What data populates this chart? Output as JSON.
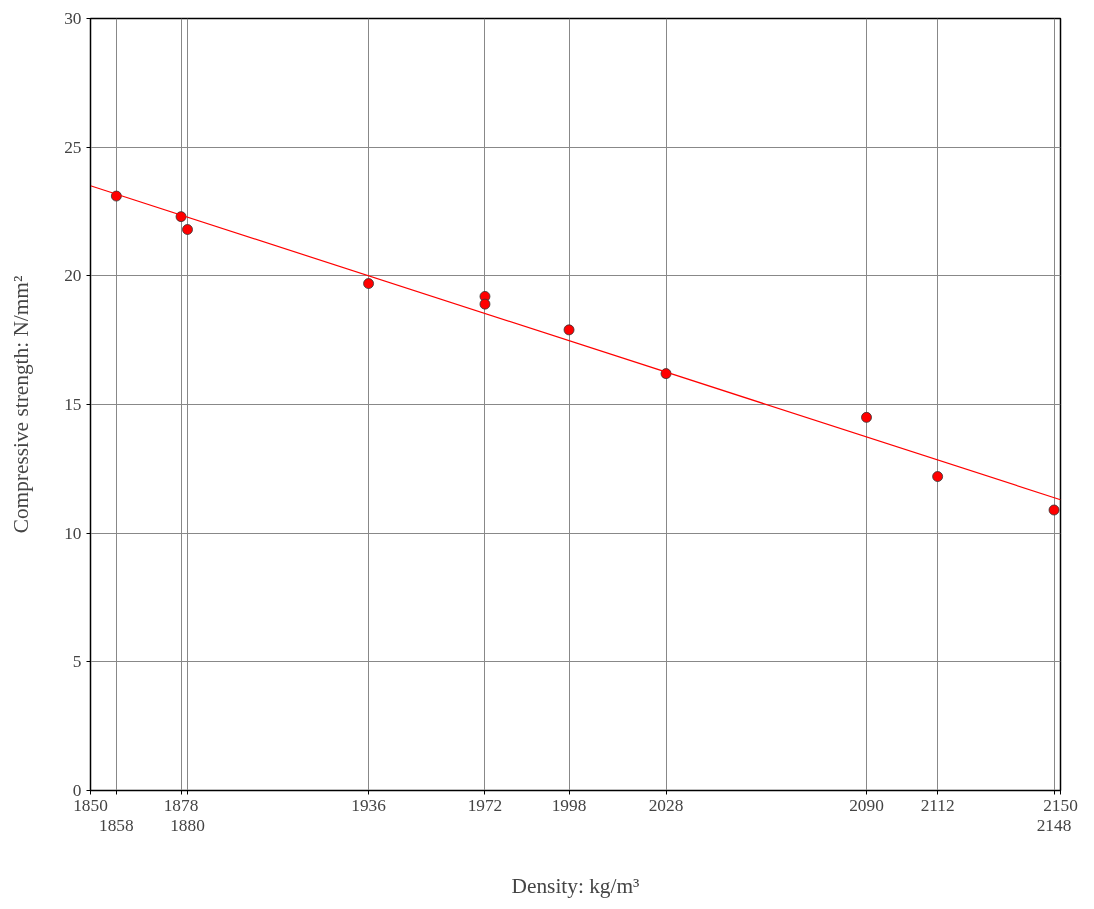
{
  "chart_data": {
    "type": "scatter",
    "xlabel": "Density: kg/m³",
    "ylabel": "Compressive strength: N/mm²",
    "xlim": [
      1850,
      2150
    ],
    "ylim": [
      0,
      30
    ],
    "xticks": [
      1850,
      {
        "value": 1858,
        "label": null
      },
      1878,
      {
        "value": 1880,
        "label": null
      },
      1936,
      1972,
      1998,
      2028,
      2090,
      2112,
      {
        "value": 2148,
        "label": null
      },
      2150
    ],
    "annotations": [
      "1858",
      "1880",
      "2148"
    ],
    "yticks": [
      0,
      5,
      10,
      15,
      20,
      25,
      30
    ],
    "grid": true,
    "series": [
      {
        "marker": "circle",
        "color": "#ff0000",
        "x": [
          1858,
          1878,
          1880,
          1936,
          1972,
          1972,
          1998,
          2028,
          2090,
          2112,
          2148
        ],
        "values": [
          23.1,
          22.3,
          21.8,
          19.7,
          19.2,
          18.9,
          17.9,
          16.2,
          14.5,
          12.2,
          10.9
        ]
      },
      {
        "type": "line",
        "color": "#ff0000",
        "line_style": "solid",
        "x": [
          1850,
          2150
        ],
        "values": [
          23.5,
          11.3
        ]
      }
    ]
  }
}
